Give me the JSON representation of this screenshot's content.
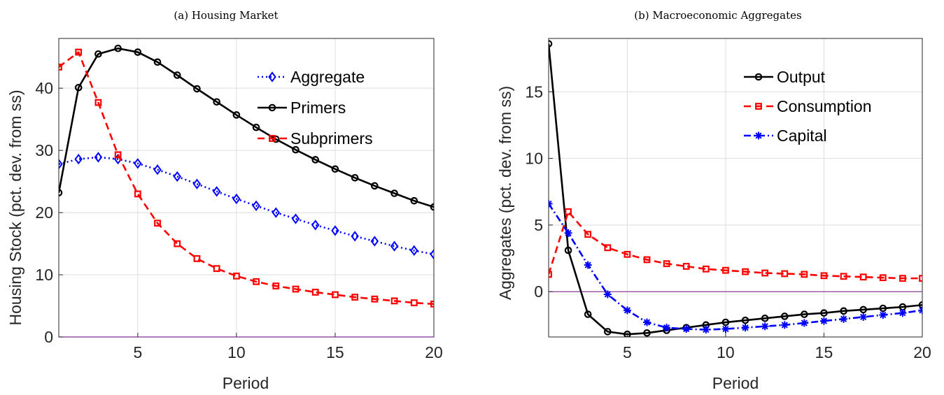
{
  "chart_data": [
    {
      "type": "line",
      "title": "(a) Housing Market",
      "xlabel": "Period",
      "ylabel": "Housing Stock (pct. dev. from ss)",
      "xlim": [
        1,
        20
      ],
      "ylim": [
        0,
        48
      ],
      "xticks": [
        5,
        10,
        15,
        20
      ],
      "yticks": [
        0,
        10,
        20,
        30,
        40
      ],
      "grid": true,
      "legend_position": "top-right",
      "reference_line": {
        "y": 0,
        "color": "#7e2f8e"
      },
      "x": [
        1,
        2,
        3,
        4,
        5,
        6,
        7,
        8,
        9,
        10,
        11,
        12,
        13,
        14,
        15,
        16,
        17,
        18,
        19,
        20
      ],
      "series": [
        {
          "name": "Aggregate",
          "color": "#0000ff",
          "line": "dotted",
          "marker": "diamond",
          "values": [
            27.8,
            28.6,
            28.9,
            28.6,
            27.9,
            26.9,
            25.8,
            24.6,
            23.4,
            22.2,
            21.1,
            20.0,
            19.0,
            18.0,
            17.1,
            16.2,
            15.4,
            14.6,
            13.9,
            13.3
          ]
        },
        {
          "name": "Primers",
          "color": "#000000",
          "line": "solid",
          "marker": "circle",
          "values": [
            23.2,
            40.1,
            45.5,
            46.4,
            45.8,
            44.2,
            42.1,
            39.9,
            37.8,
            35.7,
            33.7,
            31.8,
            30.1,
            28.5,
            27.0,
            25.6,
            24.3,
            23.1,
            21.9,
            20.9
          ]
        },
        {
          "name": "Subprimers",
          "color": "#ff0000",
          "line": "dashed",
          "marker": "square",
          "values": [
            43.4,
            45.8,
            37.7,
            29.3,
            23.0,
            18.3,
            15.0,
            12.6,
            11.0,
            9.8,
            8.9,
            8.2,
            7.7,
            7.2,
            6.8,
            6.4,
            6.1,
            5.8,
            5.5,
            5.3
          ]
        }
      ]
    },
    {
      "type": "line",
      "title": "(b) Macroeconomic Aggregates",
      "xlabel": "Period",
      "ylabel": "Aggregates (pct. dev. from ss)",
      "xlim": [
        1,
        20
      ],
      "ylim": [
        -3.4,
        19
      ],
      "xticks": [
        5,
        10,
        15,
        20
      ],
      "yticks": [
        0,
        5,
        10,
        15
      ],
      "grid": true,
      "legend_position": "top-right",
      "reference_line": {
        "y": 0,
        "color": "#7e2f8e"
      },
      "x": [
        1,
        2,
        3,
        4,
        5,
        6,
        7,
        8,
        9,
        10,
        11,
        12,
        13,
        14,
        15,
        16,
        17,
        18,
        19,
        20
      ],
      "series": [
        {
          "name": "Output",
          "color": "#000000",
          "line": "solid",
          "marker": "circle",
          "values": [
            18.6,
            3.1,
            -1.7,
            -3.0,
            -3.2,
            -3.1,
            -2.9,
            -2.7,
            -2.5,
            -2.3,
            -2.15,
            -2.0,
            -1.85,
            -1.7,
            -1.6,
            -1.45,
            -1.35,
            -1.25,
            -1.15,
            -1.0
          ]
        },
        {
          "name": "Consumption",
          "color": "#ff0000",
          "line": "dashed",
          "marker": "square",
          "values": [
            1.3,
            6.0,
            4.3,
            3.3,
            2.8,
            2.4,
            2.1,
            1.9,
            1.7,
            1.6,
            1.5,
            1.4,
            1.35,
            1.3,
            1.2,
            1.15,
            1.1,
            1.05,
            1.0,
            1.0
          ]
        },
        {
          "name": "Capital",
          "color": "#0000ff",
          "line": "dashdot",
          "marker": "asterisk",
          "values": [
            6.6,
            4.4,
            2.0,
            -0.2,
            -1.4,
            -2.3,
            -2.7,
            -2.8,
            -2.85,
            -2.8,
            -2.7,
            -2.6,
            -2.5,
            -2.35,
            -2.2,
            -2.05,
            -1.9,
            -1.75,
            -1.6,
            -1.4
          ]
        }
      ]
    }
  ]
}
